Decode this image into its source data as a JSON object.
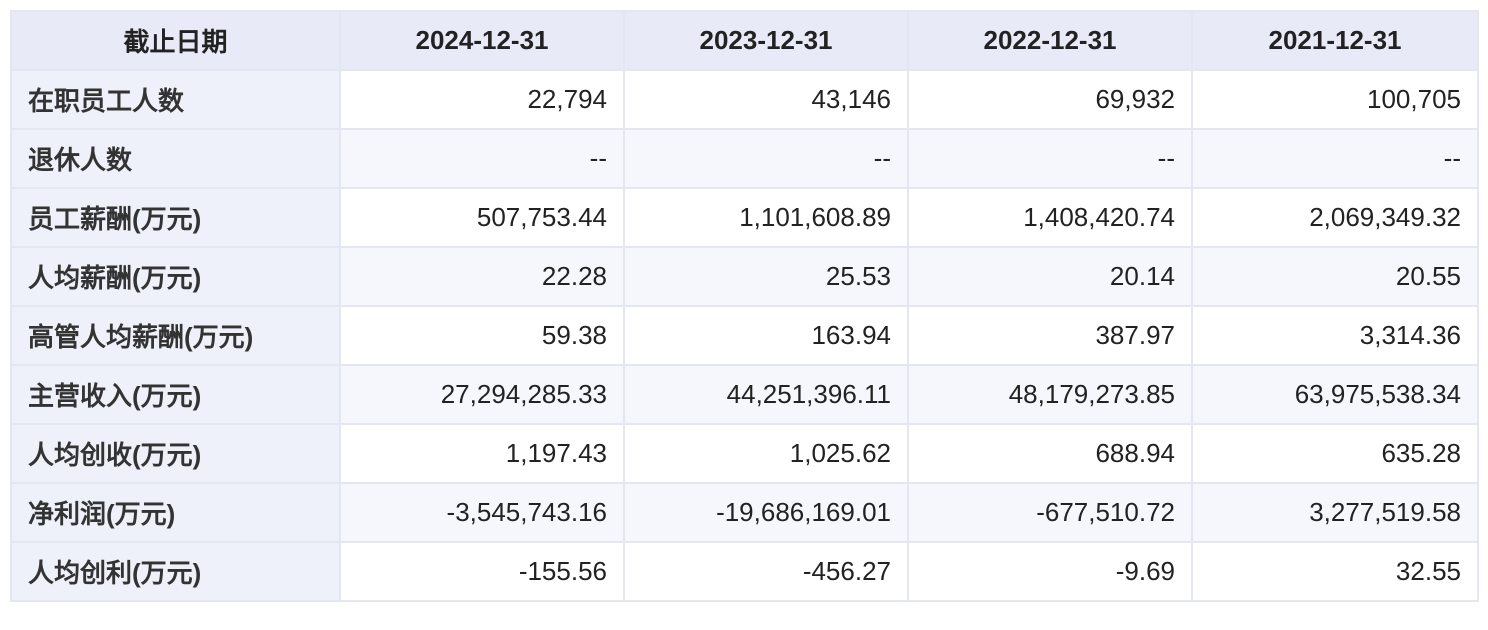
{
  "table": {
    "header": [
      "截止日期",
      "2024-12-31",
      "2023-12-31",
      "2022-12-31",
      "2021-12-31"
    ],
    "rows": [
      [
        "在职员工人数",
        "22,794",
        "43,146",
        "69,932",
        "100,705"
      ],
      [
        "退休人数",
        "--",
        "--",
        "--",
        "--"
      ],
      [
        "员工薪酬(万元)",
        "507,753.44",
        "1,101,608.89",
        "1,408,420.74",
        "2,069,349.32"
      ],
      [
        "人均薪酬(万元)",
        "22.28",
        "25.53",
        "20.14",
        "20.55"
      ],
      [
        "高管人均薪酬(万元)",
        "59.38",
        "163.94",
        "387.97",
        "3,314.36"
      ],
      [
        "主营收入(万元)",
        "27,294,285.33",
        "44,251,396.11",
        "48,179,273.85",
        "63,975,538.34"
      ],
      [
        "人均创收(万元)",
        "1,197.43",
        "1,025.62",
        "688.94",
        "635.28"
      ],
      [
        "净利润(万元)",
        "-3,545,743.16",
        "-19,686,169.01",
        "-677,510.72",
        "3,277,519.58"
      ],
      [
        "人均创利(万元)",
        "-155.56",
        "-456.27",
        "-9.69",
        "32.55"
      ]
    ]
  }
}
